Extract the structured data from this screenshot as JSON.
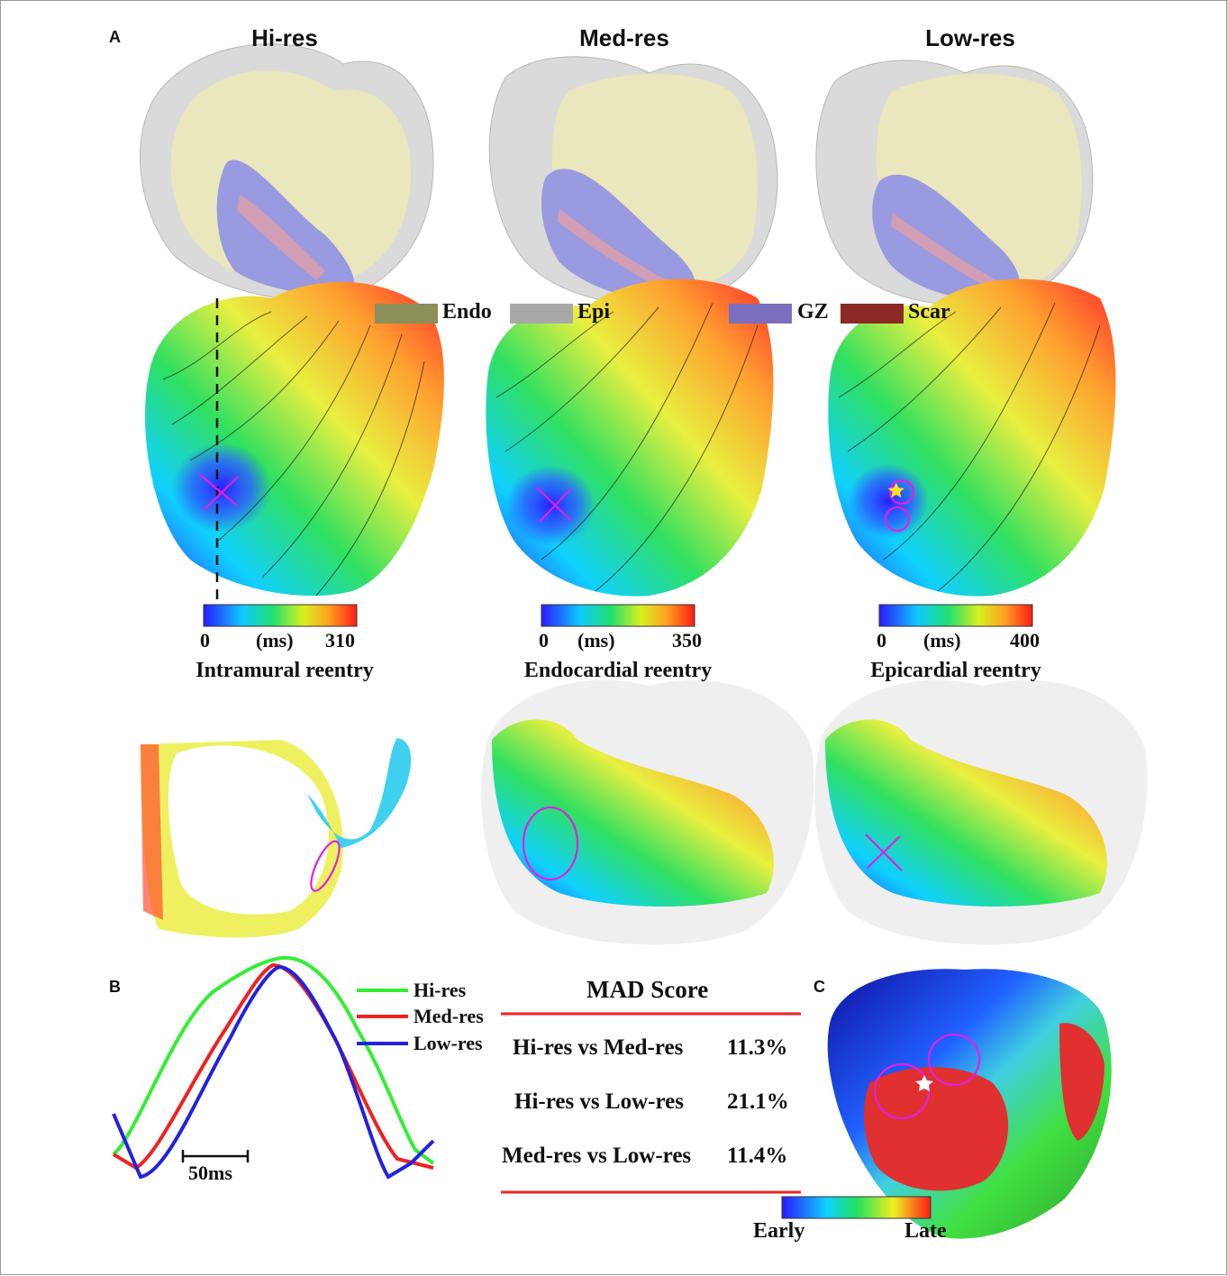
{
  "panels": {
    "a": "A",
    "b": "B",
    "c": "C"
  },
  "columns": [
    "Hi-res",
    "Med-res",
    "Low-res"
  ],
  "tissue_legend": [
    {
      "label": "Endo",
      "color": "#8b8f5a"
    },
    {
      "label": "Epi",
      "color": "#a8a8a8"
    },
    {
      "label": "GZ",
      "color": "#7a6fbf"
    },
    {
      "label": "Scar",
      "color": "#8b2a24"
    }
  ],
  "colorbars": [
    {
      "min": "0",
      "unit": "(ms)",
      "max": "310",
      "caption": "Intramural reentry"
    },
    {
      "min": "0",
      "unit": "(ms)",
      "max": "350",
      "caption": "Endocardial reentry"
    },
    {
      "min": "0",
      "unit": "(ms)",
      "max": "400",
      "caption": "Epicardial reentry"
    }
  ],
  "ecg": {
    "scale_label": "50ms",
    "series": [
      {
        "name": "Hi-res",
        "color": "#33ee33"
      },
      {
        "name": "Med-res",
        "color": "#ee2222"
      },
      {
        "name": "Low-res",
        "color": "#2222dd"
      }
    ]
  },
  "mad": {
    "title": "MAD Score",
    "rows": [
      {
        "label": "Hi-res vs Med-res",
        "value": "11.3%"
      },
      {
        "label": "Hi-res vs Low-res",
        "value": "21.1%"
      },
      {
        "label": "Med-res vs Low-res",
        "value": "11.4%"
      }
    ]
  },
  "panel_c_colorbar": {
    "early": "Early",
    "late": "Late"
  }
}
